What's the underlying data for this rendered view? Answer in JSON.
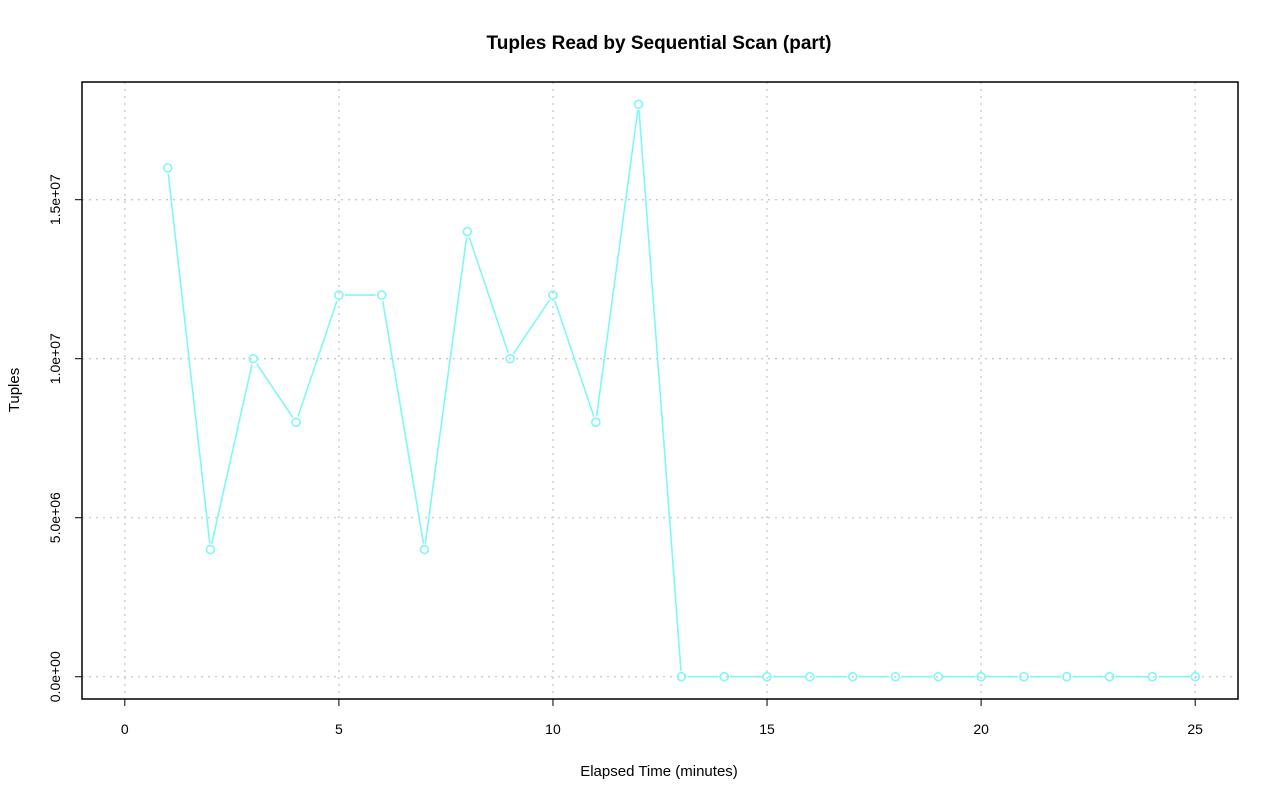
{
  "chart_data": {
    "type": "line",
    "title": "Tuples Read by Sequential Scan (part)",
    "xlabel": "Elapsed Time (minutes)",
    "ylabel": "Tuples",
    "xlim": [
      -1,
      26
    ],
    "ylim": [
      -700000,
      18700000
    ],
    "x_ticks": [
      0,
      5,
      10,
      15,
      20,
      25
    ],
    "x_tick_labels": [
      "0",
      "5",
      "10",
      "15",
      "20",
      "25"
    ],
    "y_ticks": [
      0,
      5000000,
      10000000,
      15000000
    ],
    "y_tick_labels": [
      "0.0e+00",
      "5.0e+06",
      "1.0e+07",
      "1.5e+07"
    ],
    "grid": true,
    "series": [
      {
        "color": "#7ff7f7",
        "marker": "open-circle",
        "x": [
          1,
          2,
          3,
          4,
          5,
          6,
          7,
          8,
          9,
          10,
          11,
          12,
          13,
          14,
          15,
          16,
          17,
          18,
          19,
          20,
          21,
          22,
          23,
          24,
          25
        ],
        "values": [
          16000000,
          4000000,
          10000000,
          8000000,
          12000000,
          12000000,
          4000000,
          14000000,
          10000000,
          12000000,
          8000000,
          18000000,
          0,
          0,
          0,
          0,
          0,
          0,
          0,
          0,
          0,
          0,
          0,
          0,
          0
        ]
      }
    ]
  }
}
